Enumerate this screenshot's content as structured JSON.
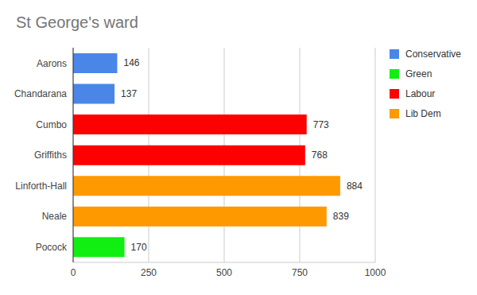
{
  "chart_data": {
    "type": "bar",
    "title": "St George's ward",
    "orientation": "horizontal",
    "stacked": true,
    "data_labels": true,
    "grid": true,
    "legend": "right",
    "categories": [
      "Aarons",
      "Chandarana",
      "Cumbo",
      "Griffiths",
      "Linforth-Hall",
      "Neale",
      "Pocock"
    ],
    "series": [
      {
        "name": "Conservative",
        "color": "#4a86e8",
        "values": [
          146,
          137,
          null,
          null,
          null,
          null,
          null
        ]
      },
      {
        "name": "Green",
        "color": "#11ee11",
        "values": [
          null,
          null,
          null,
          null,
          null,
          null,
          170
        ]
      },
      {
        "name": "Labour",
        "color": "#ff0000",
        "values": [
          null,
          null,
          773,
          768,
          null,
          null,
          null
        ]
      },
      {
        "name": "Lib Dem",
        "color": "#ff9900",
        "values": [
          null,
          null,
          null,
          null,
          884,
          839,
          null
        ]
      }
    ],
    "xlim": [
      0,
      1000
    ],
    "xticks": [
      0,
      250,
      500,
      750,
      1000
    ]
  }
}
